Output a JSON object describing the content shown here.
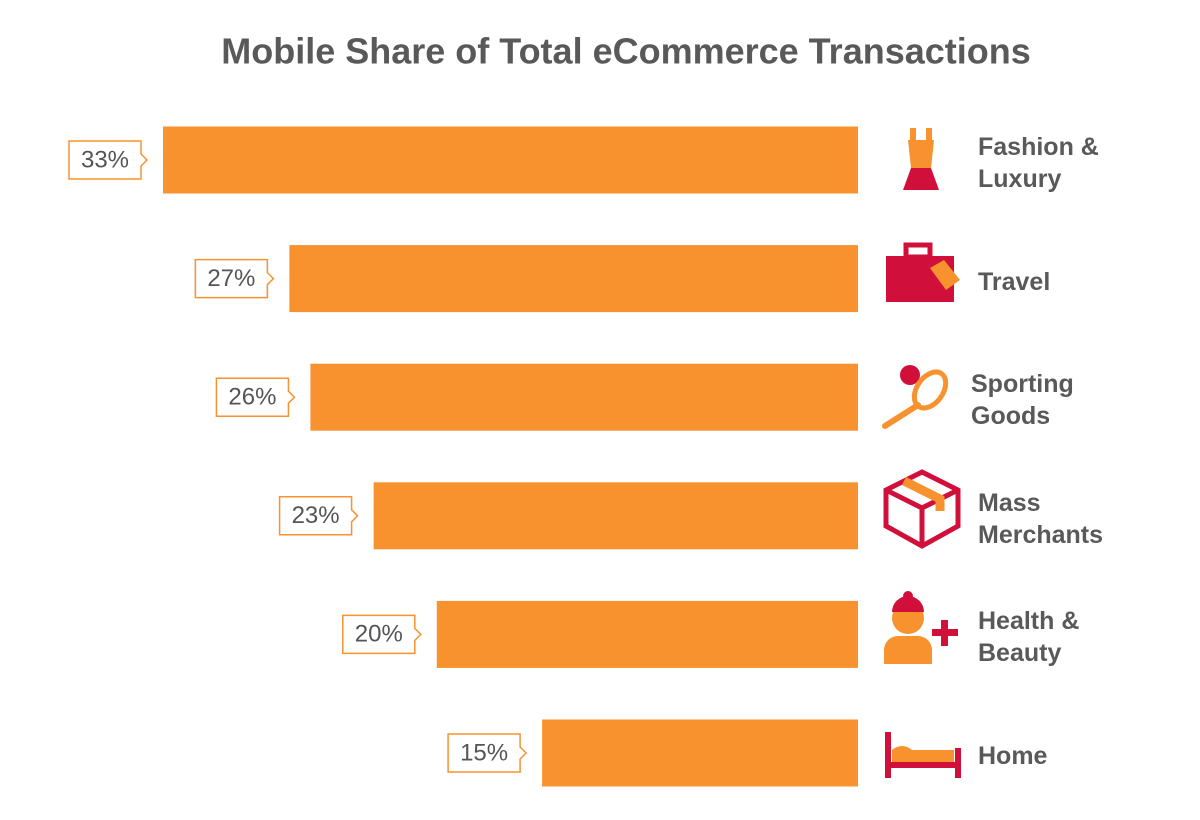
{
  "chart_data": {
    "type": "bar",
    "orientation": "horizontal",
    "title": "Mobile Share of Total eCommerce Transactions",
    "categories": [
      "Fashion & Luxury",
      "Travel",
      "Sporting Goods",
      "Mass Merchants",
      "Health & Beauty",
      "Home"
    ],
    "values": [
      33,
      27,
      26,
      23,
      20,
      15
    ],
    "value_labels": [
      "33%",
      "27%",
      "26%",
      "23%",
      "20%",
      "15%"
    ],
    "color": "#f8922e"
  }
}
